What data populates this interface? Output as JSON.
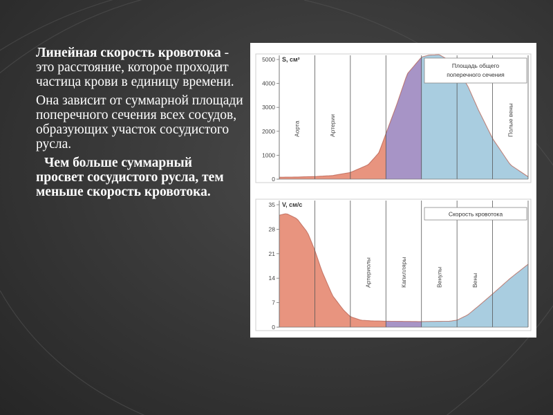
{
  "text": {
    "p1_bold": "Линейная скорость кровотока",
    "p1_rest": " - это расстояние, которое проходит частица крови в единицу времени.",
    "p2": "Она зависит от суммарной площади поперечного сечения всех сосудов, образующих участок сосудистого русла.",
    "p3": "Чем больше суммарный просвет сосудистого русла, тем меньше скорость кровотока."
  },
  "colors": {
    "red_fill": "#e8947f",
    "red_line": "#c9473a",
    "purple_fill": "#a794c6",
    "blue_fill": "#a9cde0",
    "blue_line": "#5a86a6",
    "axis": "#777777"
  },
  "chart_data": [
    {
      "type": "area",
      "ylabel": "S, см²",
      "legend": "Площадь общего поперечного сечения",
      "ylim": [
        0,
        5000
      ],
      "yticks": [
        "5000",
        "4000",
        "3000",
        "2000",
        "1000",
        "0"
      ],
      "ytick_values": [
        5000,
        4000,
        3000,
        2000,
        1000,
        0
      ],
      "segments": [
        {
          "label": "Аорта",
          "color": "red"
        },
        {
          "label": "Артерии",
          "color": "red"
        },
        {
          "label": "",
          "color": "red"
        },
        {
          "label": "",
          "color": "purple"
        },
        {
          "label": "",
          "color": "blue"
        },
        {
          "label": "",
          "color": "blue"
        },
        {
          "label": "Полые вены",
          "color": "blue"
        }
      ],
      "x": [
        0,
        0.5,
        1.0,
        1.5,
        2.0,
        2.5,
        2.8,
        3.0,
        3.3,
        3.6,
        4.0,
        4.2,
        4.5,
        4.8,
        5.0,
        5.3,
        5.6,
        6.0,
        6.5,
        7.0
      ],
      "y": [
        80,
        90,
        110,
        150,
        280,
        600,
        1100,
        1900,
        3100,
        4400,
        5100,
        5180,
        5200,
        4950,
        4600,
        3900,
        2900,
        1700,
        600,
        100
      ],
      "color_breaks": [
        3,
        4
      ]
    },
    {
      "type": "area",
      "ylabel": "V, см/с",
      "legend": "Скорость кровотока",
      "ylim": [
        0,
        35
      ],
      "yticks": [
        "35",
        "28",
        "21",
        "14",
        "7",
        "0"
      ],
      "ytick_values": [
        35,
        28,
        21,
        14,
        7,
        0
      ],
      "segments": [
        {
          "label": "",
          "color": "red"
        },
        {
          "label": "",
          "color": "red"
        },
        {
          "label": "Артериолы",
          "color": "red"
        },
        {
          "label": "Капилляры",
          "color": "purple"
        },
        {
          "label": "Венулы",
          "color": "blue"
        },
        {
          "label": "Вены",
          "color": "blue"
        },
        {
          "label": "",
          "color": "blue"
        }
      ],
      "x": [
        0,
        0.2,
        0.5,
        0.8,
        1.0,
        1.2,
        1.5,
        1.8,
        2.0,
        2.3,
        2.6,
        3.0,
        4.0,
        4.8,
        5.0,
        5.3,
        5.6,
        6.0,
        6.5,
        7.0
      ],
      "y": [
        32,
        32.5,
        31,
        27,
        22,
        16,
        9,
        5,
        3,
        2,
        1.8,
        1.7,
        1.6,
        1.7,
        2,
        3.5,
        6,
        9.5,
        14,
        18
      ],
      "color_breaks": [
        3,
        4
      ]
    }
  ]
}
